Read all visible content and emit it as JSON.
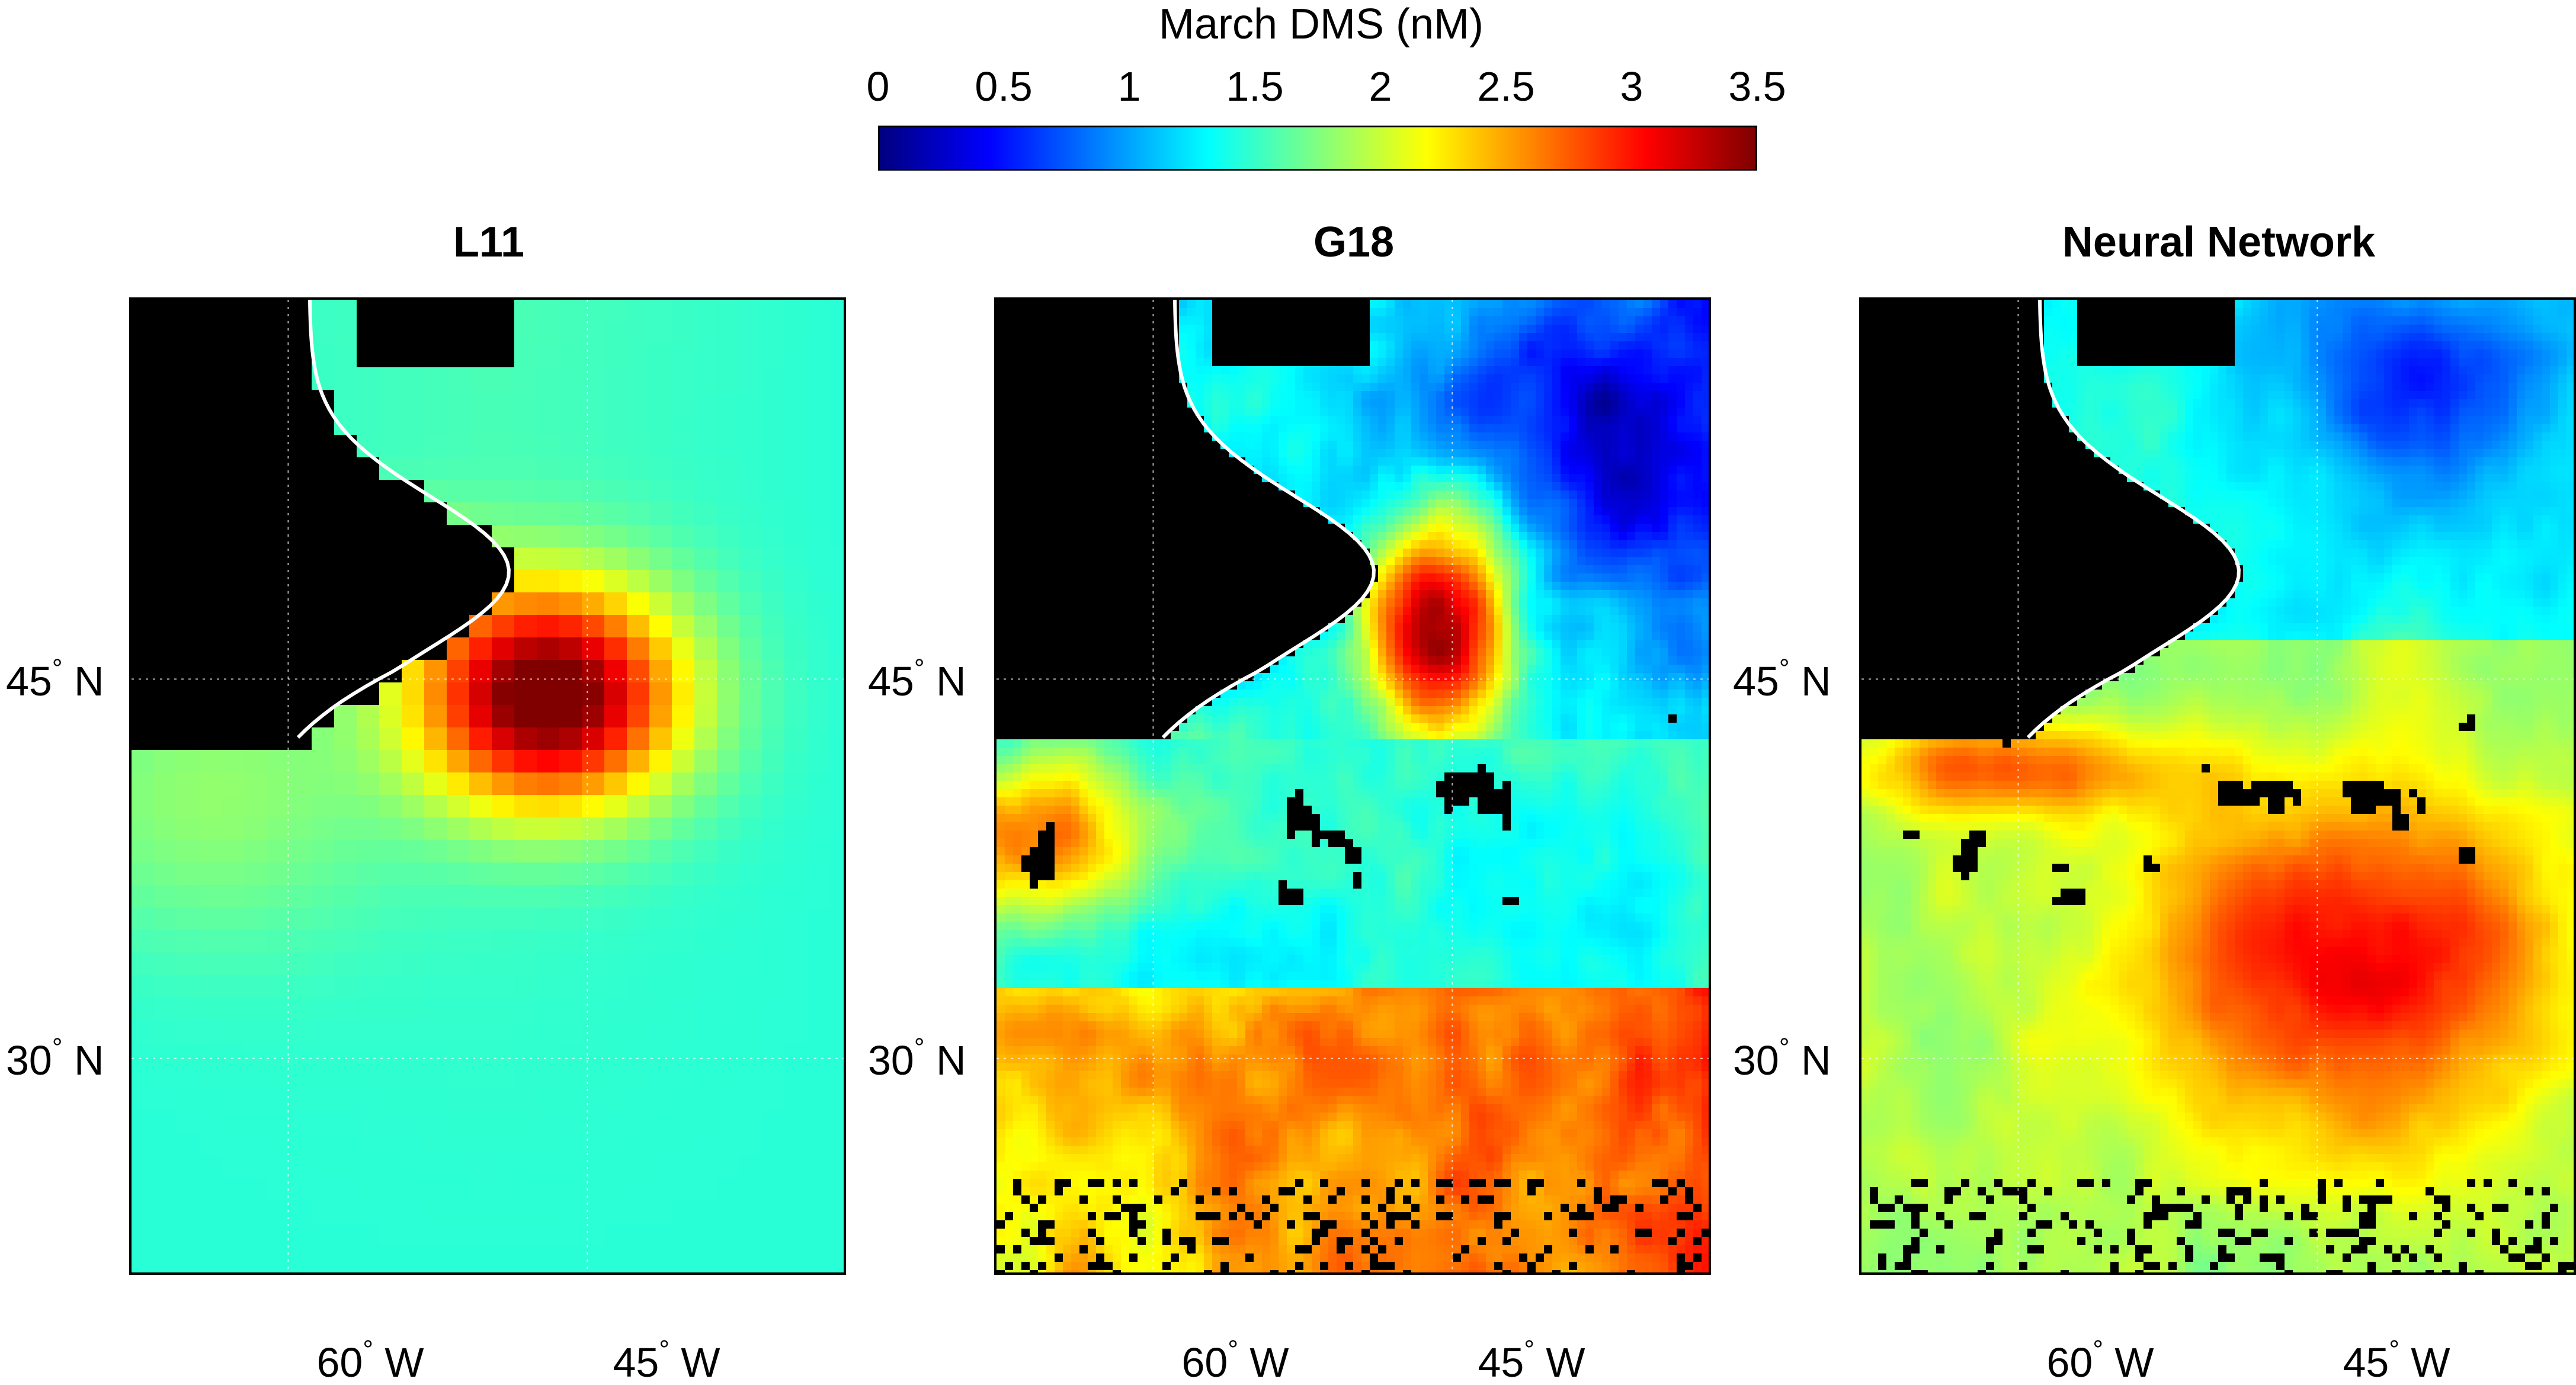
{
  "colorbar": {
    "title": "March DMS (nM)",
    "ticks": [
      "0",
      "0.5",
      "1",
      "1.5",
      "2",
      "2.5",
      "3",
      "3.5"
    ],
    "range": [
      0,
      3.5
    ],
    "colormap": "jet",
    "colors": [
      "#000080",
      "#0000ff",
      "#0080ff",
      "#00ffff",
      "#80ff80",
      "#ffff00",
      "#ff8000",
      "#ff0000",
      "#800000"
    ]
  },
  "land_color": "#000000",
  "coastline_color": "#ffffff",
  "lat_labels": [
    {
      "deg": "45",
      "hemi": "N"
    },
    {
      "deg": "30",
      "hemi": "N"
    }
  ],
  "lon_labels": [
    {
      "deg": "60",
      "hemi": "W"
    },
    {
      "deg": "45",
      "hemi": "W"
    }
  ],
  "panels": [
    {
      "title": "L11",
      "pattern": "smooth climatology with strong hotspot near 50N 50W"
    },
    {
      "title": "G18",
      "pattern": "patchy high values along shelf, low north, moderate south"
    },
    {
      "title": "Neural Network",
      "pattern": "moderate broad high values in southeast"
    }
  ]
}
